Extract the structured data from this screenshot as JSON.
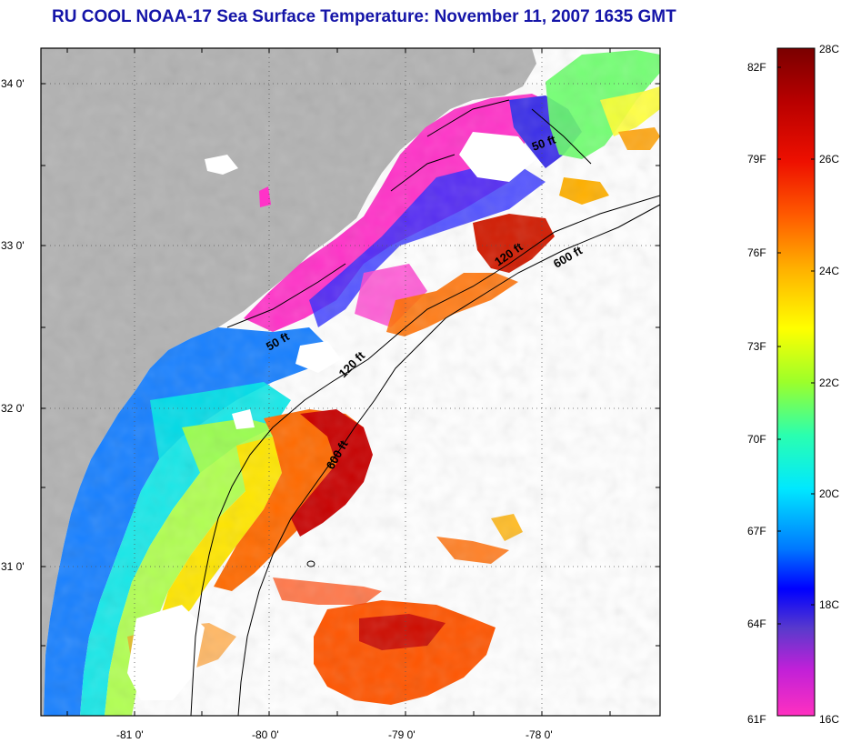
{
  "title": "RU COOL  NOAA-17  Sea Surface Temperature:  November 11, 2007 1635 GMT",
  "map": {
    "lat_labels": [
      "34 0'",
      "33 0'",
      "32 0'",
      "31 0'"
    ],
    "lon_labels": [
      "-81 0'",
      "-80 0'",
      "-79 0'",
      "-78 0'"
    ],
    "contour_labels": [
      "50 ft",
      "120 ft",
      "600 ft",
      "50 ft",
      "120 ft",
      "600 ft"
    ],
    "colors": {
      "land": "#b2b2b2",
      "no_data": "#ffffff",
      "frame": "#000000",
      "title": "#1515a8"
    }
  },
  "colorbar": {
    "fahrenheit_labels": [
      "82F",
      "79F",
      "76F",
      "73F",
      "70F",
      "67F",
      "64F",
      "61F"
    ],
    "celsius_labels": [
      "28C",
      "26C",
      "24C",
      "22C",
      "20C",
      "18C",
      "16C"
    ],
    "range_c": [
      16,
      28
    ],
    "range_f": [
      61,
      82
    ]
  }
}
